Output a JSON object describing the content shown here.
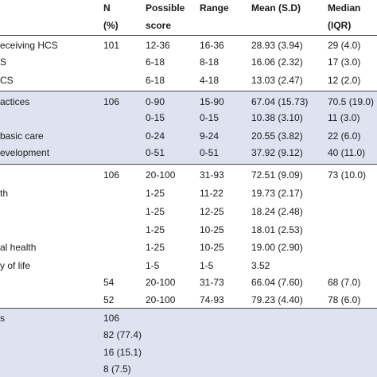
{
  "header": {
    "n_line1": "N",
    "n_line2": "(%)",
    "ps_line1": "Possible",
    "ps_line2": "score",
    "range": "Range",
    "mean_line1": "Mean (S.D)",
    "mean_line2": "",
    "median_line1": "Median",
    "median_line2": "(IQR)"
  },
  "rows": [
    {
      "label": "eceiving HCS",
      "n": "101",
      "possible": "12-36",
      "range": "16-36",
      "mean": "28.93 (3.94)",
      "median": "29 (4.0)"
    },
    {
      "label": "S",
      "n": "",
      "possible": "6-18",
      "range": "8-18",
      "mean": "16.06 (2.32)",
      "median": "17 (3.0)"
    },
    {
      "label": "CS",
      "n": "",
      "possible": "6-18",
      "range": "4-18",
      "mean": "13.03 (2.47)",
      "median": "12 (2.0)"
    },
    {
      "label": "actices",
      "n": "106",
      "possible": "0-90",
      "range": "15-90",
      "mean": "67.04 (15.73)",
      "median": "70.5 (19.0)"
    },
    {
      "label": "",
      "n": "",
      "possible": "0-15",
      "range": "0-15",
      "mean": "10.38 (3.10)",
      "median": "11 (3.0)"
    },
    {
      "label": "basic care",
      "n": "",
      "possible": "0-24",
      "range": "9-24",
      "mean": "20.55 (3.82)",
      "median": "22 (6.0)"
    },
    {
      "label": "evelopment",
      "n": "",
      "possible": "0-51",
      "range": "0-51",
      "mean": "37.92 (9.12)",
      "median": "40 (11.0)"
    },
    {
      "label": "",
      "n": "106",
      "possible": "20-100",
      "range": "31-93",
      "mean": "72.51 (9.09)",
      "median": "73 (10.0)"
    },
    {
      "label": "th",
      "n": "",
      "possible": "1-25",
      "range": "11-22",
      "mean": "19.73 (2.17)",
      "median": ""
    },
    {
      "label": "",
      "n": "",
      "possible": "1-25",
      "range": "12-25",
      "mean": "18.24 (2.48)",
      "median": ""
    },
    {
      "label": "",
      "n": "",
      "possible": "1-25",
      "range": "10-25",
      "mean": "18.01 (2.53)",
      "median": ""
    },
    {
      "label": "al health",
      "n": "",
      "possible": "1-25",
      "range": "10-25",
      "mean": "19.00 (2.90)",
      "median": ""
    },
    {
      "label": "y of life",
      "n": "",
      "possible": "1-5",
      "range": "1-5",
      "mean": "3.52",
      "median": ""
    },
    {
      "label": "",
      "n": "54",
      "possible": "20-100",
      "range": "31-73",
      "mean": "66.04 (7.60)",
      "median": "68 (7.0)"
    },
    {
      "label": "",
      "n": "52",
      "possible": "20-100",
      "range": "74-93",
      "mean": "79.23 (4.40)",
      "median": "78 (6.0)"
    },
    {
      "label": "s",
      "n": "106",
      "possible": "",
      "range": "",
      "mean": "",
      "median": ""
    },
    {
      "label": "",
      "n": "82 (77.4)",
      "possible": "",
      "range": "",
      "mean": "",
      "median": ""
    },
    {
      "label": "",
      "n": "16 (15.1)",
      "possible": "",
      "range": "",
      "mean": "",
      "median": ""
    },
    {
      "label": "",
      "n": " 8 (7.5)",
      "possible": "",
      "range": "",
      "mean": "",
      "median": ""
    }
  ]
}
